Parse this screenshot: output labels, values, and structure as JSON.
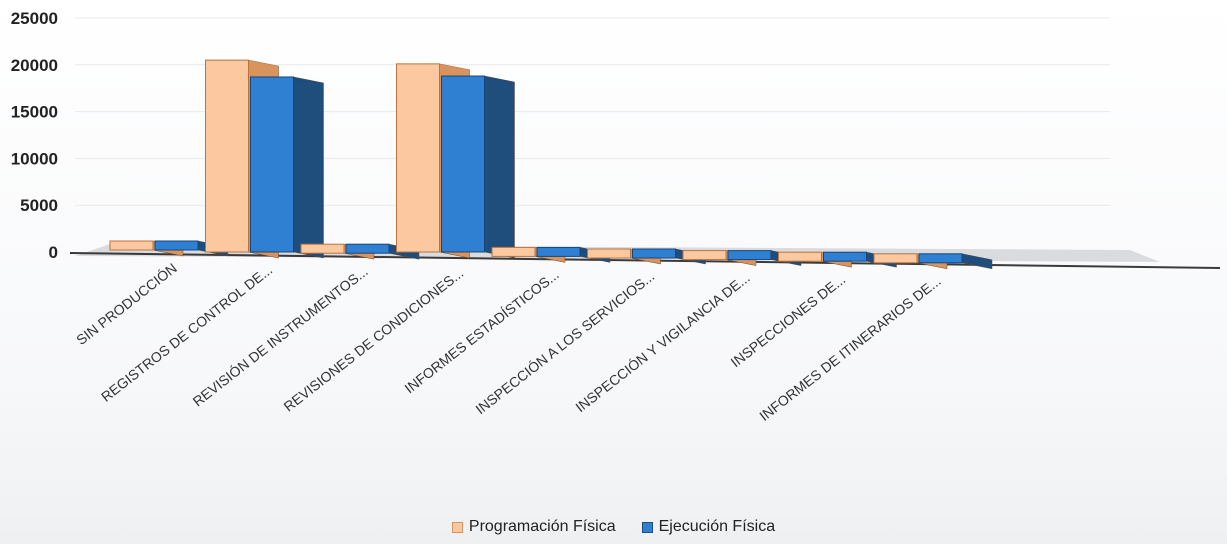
{
  "chart_data": {
    "type": "bar",
    "yticks": [
      "0",
      "5000",
      "10000",
      "15000",
      "20000",
      "25000"
    ],
    "ylim": [
      0,
      25000
    ],
    "categories": [
      "SIN PRODUCCIÓN",
      "REGISTROS DE CONTROL DE...",
      "REVISIÓN DE INSTRUMENTOS...",
      "REVISIONES DE CONDICIONES...",
      "INFORMES ESTADÍSTICOS...",
      "INSPECCIÓN A LOS SERVICIOS...",
      "INSPECCIÓN Y VIGILANCIA DE...",
      "INSPECCIONES DE...",
      "INFORMES DE ITINERARIOS DE..."
    ],
    "series": [
      {
        "name": "Programación Física",
        "color": "#FBC8A0",
        "side": "#D9935C",
        "values": [
          0,
          20500,
          0,
          20100,
          0,
          0,
          0,
          0,
          0
        ]
      },
      {
        "name": "Ejecución Física",
        "color": "#2F7FD3",
        "side": "#1F4E7D",
        "values": [
          0,
          18700,
          0,
          18800,
          0,
          0,
          0,
          0,
          0
        ]
      }
    ],
    "legend": "bottom",
    "grid": true
  }
}
